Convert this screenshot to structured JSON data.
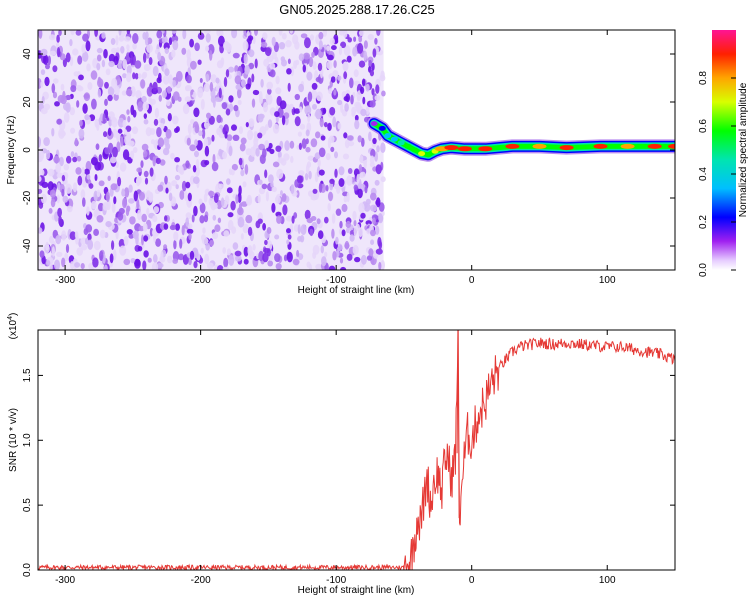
{
  "title": "GN05.2025.288.17.26.C25",
  "colors": {
    "snr_line": "#e53935",
    "noise_low": "#efe6fb",
    "noise_mid": "#b98cf0",
    "noise_high": "#6a12e6"
  },
  "chart_data": [
    {
      "type": "heatmap",
      "xlabel": "Height of straight line (km)",
      "ylabel": "Frequency (Hz)",
      "xlim": [
        -320,
        150
      ],
      "ylim": [
        -50,
        50
      ],
      "xticks": [
        {
          "v": -300,
          "label": "-300"
        },
        {
          "v": -200,
          "label": "-200"
        },
        {
          "v": -100,
          "label": "-100"
        },
        {
          "v": 0,
          "label": "0"
        },
        {
          "v": 100,
          "label": "100"
        }
      ],
      "yticks": [
        {
          "v": -40,
          "label": "-40"
        },
        {
          "v": -20,
          "label": "-20"
        },
        {
          "v": 0,
          "label": "0"
        },
        {
          "v": 20,
          "label": "20"
        },
        {
          "v": 40,
          "label": "40"
        }
      ],
      "noise_region_x": [
        -320,
        -65
      ],
      "ridge": [
        {
          "x": -72,
          "f": 11,
          "a": 0.15
        },
        {
          "x": -66,
          "f": 9,
          "a": 0.2
        },
        {
          "x": -62,
          "f": 6,
          "a": 0.35
        },
        {
          "x": -57,
          "f": 4.5,
          "a": 0.45
        },
        {
          "x": -52,
          "f": 3,
          "a": 0.55
        },
        {
          "x": -47,
          "f": 1.5,
          "a": 0.65
        },
        {
          "x": -42,
          "f": 0,
          "a": 0.7
        },
        {
          "x": -37,
          "f": -1.5,
          "a": 0.75
        },
        {
          "x": -32,
          "f": -2,
          "a": 0.7
        },
        {
          "x": -27,
          "f": -0.5,
          "a": 0.8
        },
        {
          "x": -22,
          "f": 0.5,
          "a": 0.85
        },
        {
          "x": -15,
          "f": 1,
          "a": 0.9
        },
        {
          "x": -5,
          "f": 0.5,
          "a": 0.9
        },
        {
          "x": 10,
          "f": 0.5,
          "a": 0.95
        },
        {
          "x": 30,
          "f": 1.5,
          "a": 0.95
        },
        {
          "x": 50,
          "f": 1.5,
          "a": 0.85
        },
        {
          "x": 70,
          "f": 1,
          "a": 0.9
        },
        {
          "x": 95,
          "f": 1.5,
          "a": 0.95
        },
        {
          "x": 115,
          "f": 1.5,
          "a": 0.85
        },
        {
          "x": 135,
          "f": 1.5,
          "a": 0.9
        },
        {
          "x": 150,
          "f": 1.5,
          "a": 0.9
        }
      ]
    },
    {
      "type": "line",
      "xlabel": "Height of straight line (km)",
      "ylabel": "SNR (10 * v/v)",
      "y_multiplier": "(x10",
      "y_multiplier_exp": "4",
      "y_multiplier_close": ")",
      "xlim": [
        -320,
        150
      ],
      "ylim": [
        0,
        1.85
      ],
      "xticks": [
        {
          "v": -300,
          "label": "-300"
        },
        {
          "v": -200,
          "label": "-200"
        },
        {
          "v": -100,
          "label": "-100"
        },
        {
          "v": 0,
          "label": "0"
        },
        {
          "v": 100,
          "label": "100"
        }
      ],
      "yticks": [
        {
          "v": 0,
          "label": "0.0"
        },
        {
          "v": 0.5,
          "label": "0.5"
        },
        {
          "v": 1.0,
          "label": "1.0"
        },
        {
          "v": 1.5,
          "label": "1.5"
        }
      ],
      "series": [
        {
          "x": [
            -320,
            -300,
            -250,
            -200,
            -150,
            -100,
            -70,
            -50,
            -45,
            -42,
            -40,
            -38,
            -35,
            -33,
            -30,
            -28,
            -25,
            -22,
            -20,
            -18,
            -15,
            -12,
            -10,
            -9,
            -8,
            -5,
            -3,
            0,
            3,
            5,
            10,
            15,
            20,
            25,
            30,
            35,
            40,
            50,
            60,
            70,
            80,
            90,
            100,
            110,
            120,
            130,
            140,
            150
          ],
          "y": [
            0.02,
            0.02,
            0.02,
            0.02,
            0.02,
            0.02,
            0.02,
            0.02,
            0.08,
            0.25,
            0.42,
            0.35,
            0.55,
            0.72,
            0.5,
            0.68,
            0.75,
            0.6,
            0.82,
            0.9,
            0.7,
            0.88,
            1.85,
            0.35,
            0.6,
            0.9,
            1.05,
            1.0,
            1.12,
            1.2,
            1.3,
            1.45,
            1.55,
            1.62,
            1.68,
            1.72,
            1.73,
            1.75,
            1.74,
            1.75,
            1.74,
            1.73,
            1.72,
            1.72,
            1.7,
            1.68,
            1.66,
            1.62
          ]
        }
      ]
    }
  ],
  "colorbar": {
    "label": "Normalized spectral amplitude",
    "range": [
      0,
      1
    ],
    "ticks": [
      {
        "v": 0.0,
        "label": "0.0"
      },
      {
        "v": 0.2,
        "label": "0.2"
      },
      {
        "v": 0.4,
        "label": "0.4"
      },
      {
        "v": 0.6,
        "label": "0.6"
      },
      {
        "v": 0.8,
        "label": "0.8"
      }
    ]
  }
}
